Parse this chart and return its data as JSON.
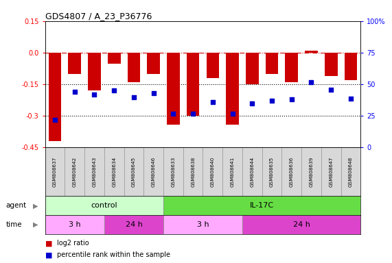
{
  "title": "GDS4807 / A_23_P36776",
  "samples": [
    "GSM808637",
    "GSM808642",
    "GSM808643",
    "GSM808634",
    "GSM808645",
    "GSM808646",
    "GSM808633",
    "GSM808638",
    "GSM808640",
    "GSM808641",
    "GSM808644",
    "GSM808635",
    "GSM808636",
    "GSM808639",
    "GSM808647",
    "GSM808648"
  ],
  "log2_ratio": [
    -0.42,
    -0.1,
    -0.18,
    -0.05,
    -0.14,
    -0.1,
    -0.34,
    -0.3,
    -0.12,
    -0.34,
    -0.15,
    -0.1,
    -0.14,
    0.01,
    -0.11,
    -0.13
  ],
  "percentile_rank": [
    22,
    44,
    42,
    45,
    40,
    43,
    27,
    27,
    36,
    27,
    35,
    37,
    38,
    52,
    46,
    39
  ],
  "ylim": [
    -0.45,
    0.15
  ],
  "y_ticks_left": [
    -0.45,
    -0.3,
    -0.15,
    0.0,
    0.15
  ],
  "y_ticks_right": [
    0,
    25,
    50,
    75,
    100
  ],
  "bar_color": "#cc0000",
  "dot_color": "#0000cc",
  "hline_color": "#cc0000",
  "dotted_line_color": "#000000",
  "agent_control_color": "#ccffcc",
  "agent_il17c_color": "#66dd44",
  "time_3h_color": "#ffaaff",
  "time_24h_color": "#dd44cc",
  "n_samples": 16
}
